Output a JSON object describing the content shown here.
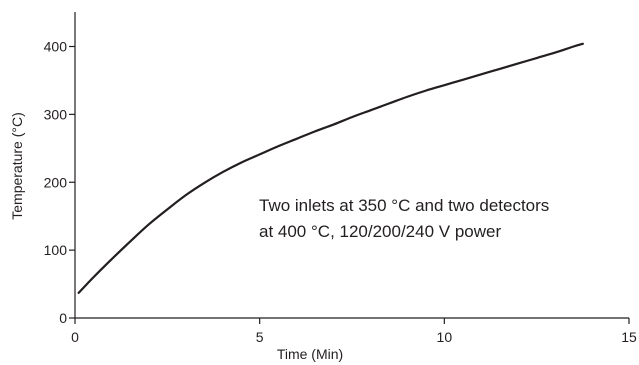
{
  "chart_data": {
    "type": "line",
    "title": "",
    "xlabel": "Time (Min)",
    "ylabel": "Temperature (°C)",
    "xlim": [
      0,
      15
    ],
    "ylim": [
      0,
      450
    ],
    "x_ticks": [
      0,
      5,
      10,
      15
    ],
    "y_ticks": [
      0,
      100,
      200,
      300,
      400
    ],
    "grid": false,
    "legend": "none",
    "colors": {
      "line": "#231f20",
      "axis": "#231f20",
      "text": "#231f20"
    },
    "annotation": [
      "Two inlets at 350 °C and two detectors",
      "at 400 °C, 120/200/240 V power"
    ],
    "series": [
      {
        "x": [
          0.1,
          0.5,
          1.0,
          1.5,
          2.0,
          2.5,
          3.0,
          3.5,
          4.0,
          4.5,
          5.0,
          5.5,
          6.0,
          6.5,
          7.0,
          7.5,
          8.0,
          8.5,
          9.0,
          9.5,
          10.0,
          10.5,
          11.0,
          11.5,
          12.0,
          12.5,
          13.0,
          13.5,
          13.75
        ],
        "y": [
          37,
          60,
          87,
          113,
          138,
          160,
          181,
          199,
          215,
          229,
          241,
          253,
          264,
          275,
          285,
          296,
          306,
          316,
          326,
          335,
          343,
          351,
          359,
          367,
          375,
          383,
          391,
          400,
          404
        ]
      }
    ]
  }
}
